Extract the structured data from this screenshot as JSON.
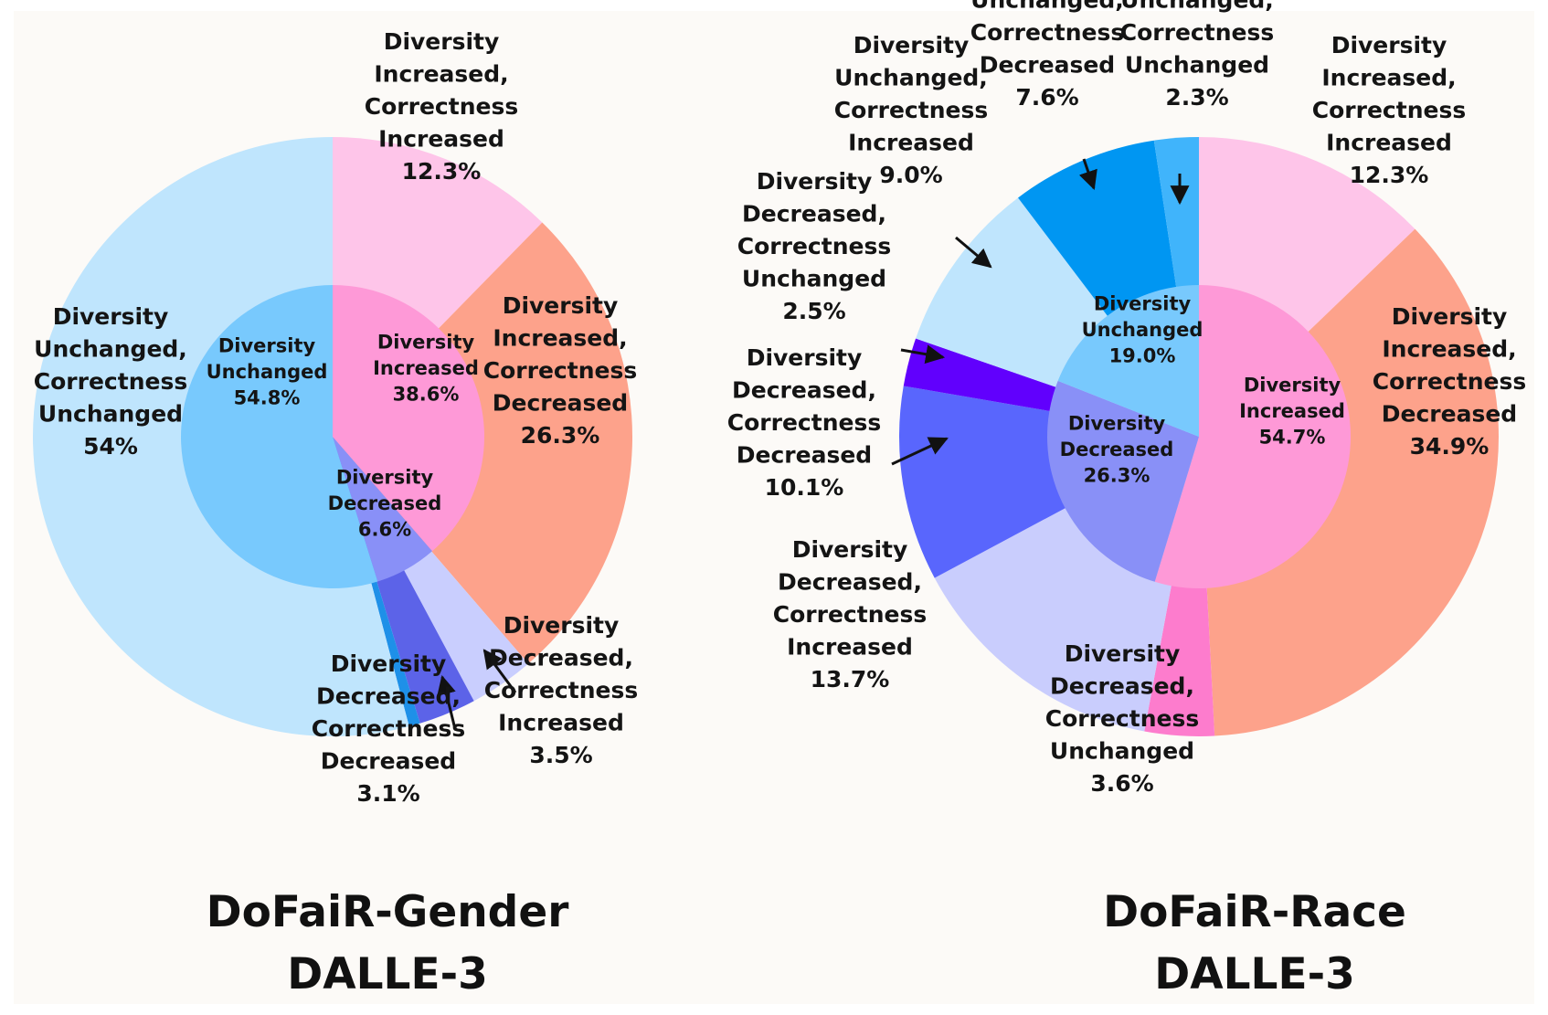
{
  "chart_data": [
    {
      "type": "pie",
      "title_lines": [
        "DoFaiR-Gender",
        "DALLE-3"
      ],
      "inner": [
        {
          "label_lines": [
            "Diversity",
            "Increased",
            "38.6%"
          ],
          "value": 38.6,
          "color": "#fe99d7"
        },
        {
          "label_lines": [
            "Diversity",
            "Decreased",
            "6.6%"
          ],
          "value": 6.6,
          "color": "#8990f7"
        },
        {
          "label_lines": [
            "Diversity",
            "Unchanged",
            "54.8%"
          ],
          "value": 54.8,
          "color": "#78c9fd"
        }
      ],
      "outer": [
        {
          "label_lines": [
            "Diversity",
            "Increased,",
            "Correctness",
            "Increased",
            "12.3%"
          ],
          "value": 12.3,
          "color": "#fec5e9"
        },
        {
          "label_lines": [
            "Diversity",
            "Increased,",
            "Correctness",
            "Decreased",
            "26.3%"
          ],
          "value": 26.3,
          "color": "#fda28b"
        },
        {
          "label_lines": [
            "Diversity",
            "Decreased,",
            "Correctness",
            "Increased",
            "3.5%"
          ],
          "value": 3.5,
          "color": "#c9cefe"
        },
        {
          "label_lines": [
            "Diversity",
            "Decreased,",
            "Correctness",
            "Decreased",
            "3.1%"
          ],
          "value": 3.1,
          "color": "#5c63e8"
        },
        {
          "label_lines": [],
          "value": 0.6,
          "color": "#1e90e8"
        },
        {
          "label_lines": [
            "Diversity",
            "Unchanged,",
            "Correctness",
            "Unchanged",
            "54%"
          ],
          "value": 54.0,
          "color": "#bfe5fd"
        }
      ]
    },
    {
      "type": "pie",
      "title_lines": [
        "DoFaiR-Race",
        "DALLE-3"
      ],
      "inner": [
        {
          "label_lines": [
            "Diversity",
            "Increased",
            "54.7%"
          ],
          "value": 54.7,
          "color": "#fe99d7"
        },
        {
          "label_lines": [
            "Diversity",
            "Decreased",
            "26.3%"
          ],
          "value": 26.3,
          "color": "#8990f7"
        },
        {
          "label_lines": [
            "Diversity",
            "Unchanged",
            "19.0%"
          ],
          "value": 19.0,
          "color": "#78c9fd"
        }
      ],
      "outer": [
        {
          "label_lines": [
            "Diversity",
            "Increased,",
            "Correctness",
            "Increased",
            "12.3%"
          ],
          "value": 12.3,
          "color": "#fec5e9"
        },
        {
          "label_lines": [
            "Diversity",
            "Increased,",
            "Correctness",
            "Decreased",
            "34.9%"
          ],
          "value": 34.9,
          "color": "#fda28b"
        },
        {
          "label_lines": [
            "Diversity",
            "Decreased,",
            "Correctness",
            "Unchanged",
            "3.6%"
          ],
          "value": 3.6,
          "color": "#fd7ccd"
        },
        {
          "label_lines": [
            "Diversity",
            "Decreased,",
            "Correctness",
            "Increased",
            "13.7%"
          ],
          "value": 13.7,
          "color": "#c9cdfd"
        },
        {
          "label_lines": [
            "Diversity",
            "Decreased,",
            "Correctness",
            "Decreased",
            "10.1%"
          ],
          "value": 10.1,
          "color": "#5966fd"
        },
        {
          "label_lines": [
            "Diversity",
            "Decreased,",
            "Correctness",
            "Unchanged",
            "2.5%"
          ],
          "value": 2.5,
          "color": "#6100fd"
        },
        {
          "label_lines": [
            "Diversity",
            "Unchanged,",
            "Correctness",
            "Increased",
            "9.0%"
          ],
          "value": 9.0,
          "color": "#bfe5fd"
        },
        {
          "label_lines": [
            "Diversity",
            "Unchanged,",
            "Correctness",
            "Decreased",
            "7.6%"
          ],
          "value": 7.6,
          "color": "#0096f2"
        },
        {
          "label_lines": [
            "Diversity",
            "Unchanged,",
            "Correctness",
            "Unchanged",
            "2.3%"
          ],
          "value": 2.3,
          "color": "#40b4fb"
        }
      ]
    }
  ]
}
